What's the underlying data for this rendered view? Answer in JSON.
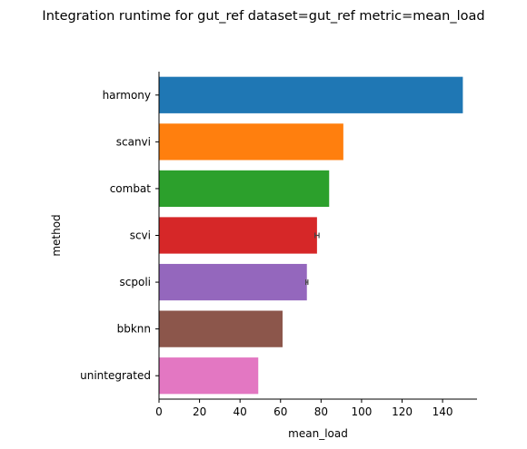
{
  "chart_data": {
    "type": "bar",
    "orientation": "horizontal",
    "title": "Integration runtime for gut_ref dataset=gut_ref metric=mean_load",
    "xlabel": "mean_load",
    "ylabel": "method",
    "xlim": [
      0,
      157
    ],
    "xticks": [
      0,
      20,
      40,
      60,
      80,
      100,
      120,
      140
    ],
    "grid": false,
    "legend": "none",
    "categories": [
      "harmony",
      "scanvi",
      "combat",
      "scvi",
      "scpoli",
      "bbknn",
      "unintegrated"
    ],
    "values": [
      150,
      91,
      84,
      78,
      73,
      61,
      49
    ],
    "errors": [
      0,
      0,
      0,
      1,
      0.5,
      0,
      0
    ],
    "colors": [
      "#1f77b4",
      "#ff7f0e",
      "#2ca02c",
      "#d62728",
      "#9467bd",
      "#8c564b",
      "#e377c2"
    ]
  }
}
